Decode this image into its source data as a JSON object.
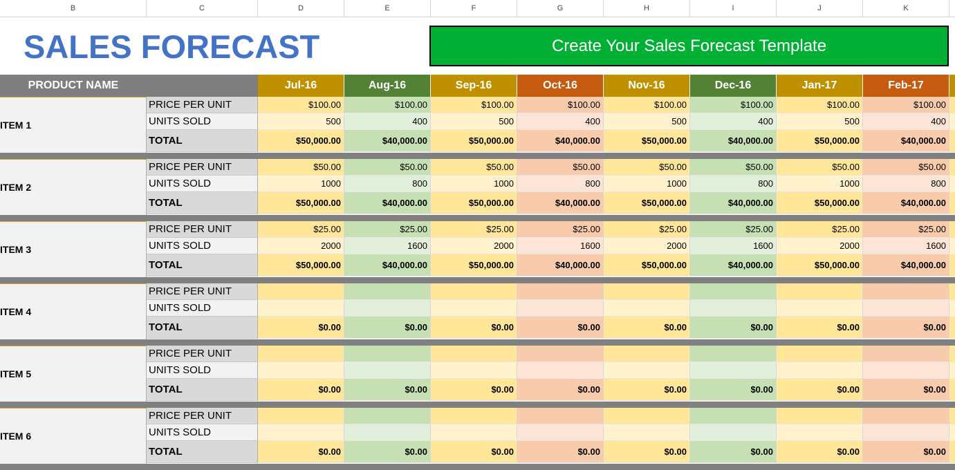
{
  "columns": [
    "B",
    "C",
    "D",
    "E",
    "F",
    "G",
    "H",
    "I",
    "J",
    "K"
  ],
  "title": "SALES FORECAST",
  "cta_label": "Create Your Sales Forecast Template",
  "header": {
    "product_label": "PRODUCT NAME",
    "months": [
      "Jul-16",
      "Aug-16",
      "Sep-16",
      "Oct-16",
      "Nov-16",
      "Dec-16",
      "Jan-17",
      "Feb-17"
    ]
  },
  "row_labels": {
    "price": "PRICE PER UNIT",
    "units": "UNITS SOLD",
    "total": "TOTAL"
  },
  "colors": {
    "gold": "#bf9000",
    "green": "#538135",
    "orange": "#c55a11",
    "gold_total": "#ffe699",
    "gold_price": "#ffe699",
    "gold_units": "#fff2cc",
    "green_total": "#c6e0b4",
    "green_price": "#c6e0b4",
    "green_units": "#e2efda",
    "orange_total": "#f8cbad",
    "orange_price": "#f8cbad",
    "orange_units": "#fce4d6"
  },
  "items": [
    {
      "name": "ITEM 1",
      "price": [
        "$100.00",
        "$100.00",
        "$100.00",
        "$100.00",
        "$100.00",
        "$100.00",
        "$100.00",
        "$100.00"
      ],
      "units": [
        "500",
        "400",
        "500",
        "400",
        "500",
        "400",
        "500",
        "400"
      ],
      "total": [
        "$50,000.00",
        "$40,000.00",
        "$50,000.00",
        "$40,000.00",
        "$50,000.00",
        "$40,000.00",
        "$50,000.00",
        "$40,000.00"
      ]
    },
    {
      "name": "ITEM 2",
      "price": [
        "$50.00",
        "$50.00",
        "$50.00",
        "$50.00",
        "$50.00",
        "$50.00",
        "$50.00",
        "$50.00"
      ],
      "units": [
        "1000",
        "800",
        "1000",
        "800",
        "1000",
        "800",
        "1000",
        "800"
      ],
      "total": [
        "$50,000.00",
        "$40,000.00",
        "$50,000.00",
        "$40,000.00",
        "$50,000.00",
        "$40,000.00",
        "$50,000.00",
        "$40,000.00"
      ]
    },
    {
      "name": "ITEM 3",
      "price": [
        "$25.00",
        "$25.00",
        "$25.00",
        "$25.00",
        "$25.00",
        "$25.00",
        "$25.00",
        "$25.00"
      ],
      "units": [
        "2000",
        "1600",
        "2000",
        "1600",
        "2000",
        "1600",
        "2000",
        "1600"
      ],
      "total": [
        "$50,000.00",
        "$40,000.00",
        "$50,000.00",
        "$40,000.00",
        "$50,000.00",
        "$40,000.00",
        "$50,000.00",
        "$40,000.00"
      ]
    },
    {
      "name": "ITEM 4",
      "price": [
        "",
        "",
        "",
        "",
        "",
        "",
        "",
        ""
      ],
      "units": [
        "",
        "",
        "",
        "",
        "",
        "",
        "",
        ""
      ],
      "total": [
        "$0.00",
        "$0.00",
        "$0.00",
        "$0.00",
        "$0.00",
        "$0.00",
        "$0.00",
        "$0.00"
      ]
    },
    {
      "name": "ITEM 5",
      "price": [
        "",
        "",
        "",
        "",
        "",
        "",
        "",
        ""
      ],
      "units": [
        "",
        "",
        "",
        "",
        "",
        "",
        "",
        ""
      ],
      "total": [
        "$0.00",
        "$0.00",
        "$0.00",
        "$0.00",
        "$0.00",
        "$0.00",
        "$0.00",
        "$0.00"
      ]
    },
    {
      "name": "ITEM 6",
      "price": [
        "",
        "",
        "",
        "",
        "",
        "",
        "",
        ""
      ],
      "units": [
        "",
        "",
        "",
        "",
        "",
        "",
        "",
        ""
      ],
      "total": [
        "$0.00",
        "$0.00",
        "$0.00",
        "$0.00",
        "$0.00",
        "$0.00",
        "$0.00",
        "$0.00"
      ]
    }
  ]
}
